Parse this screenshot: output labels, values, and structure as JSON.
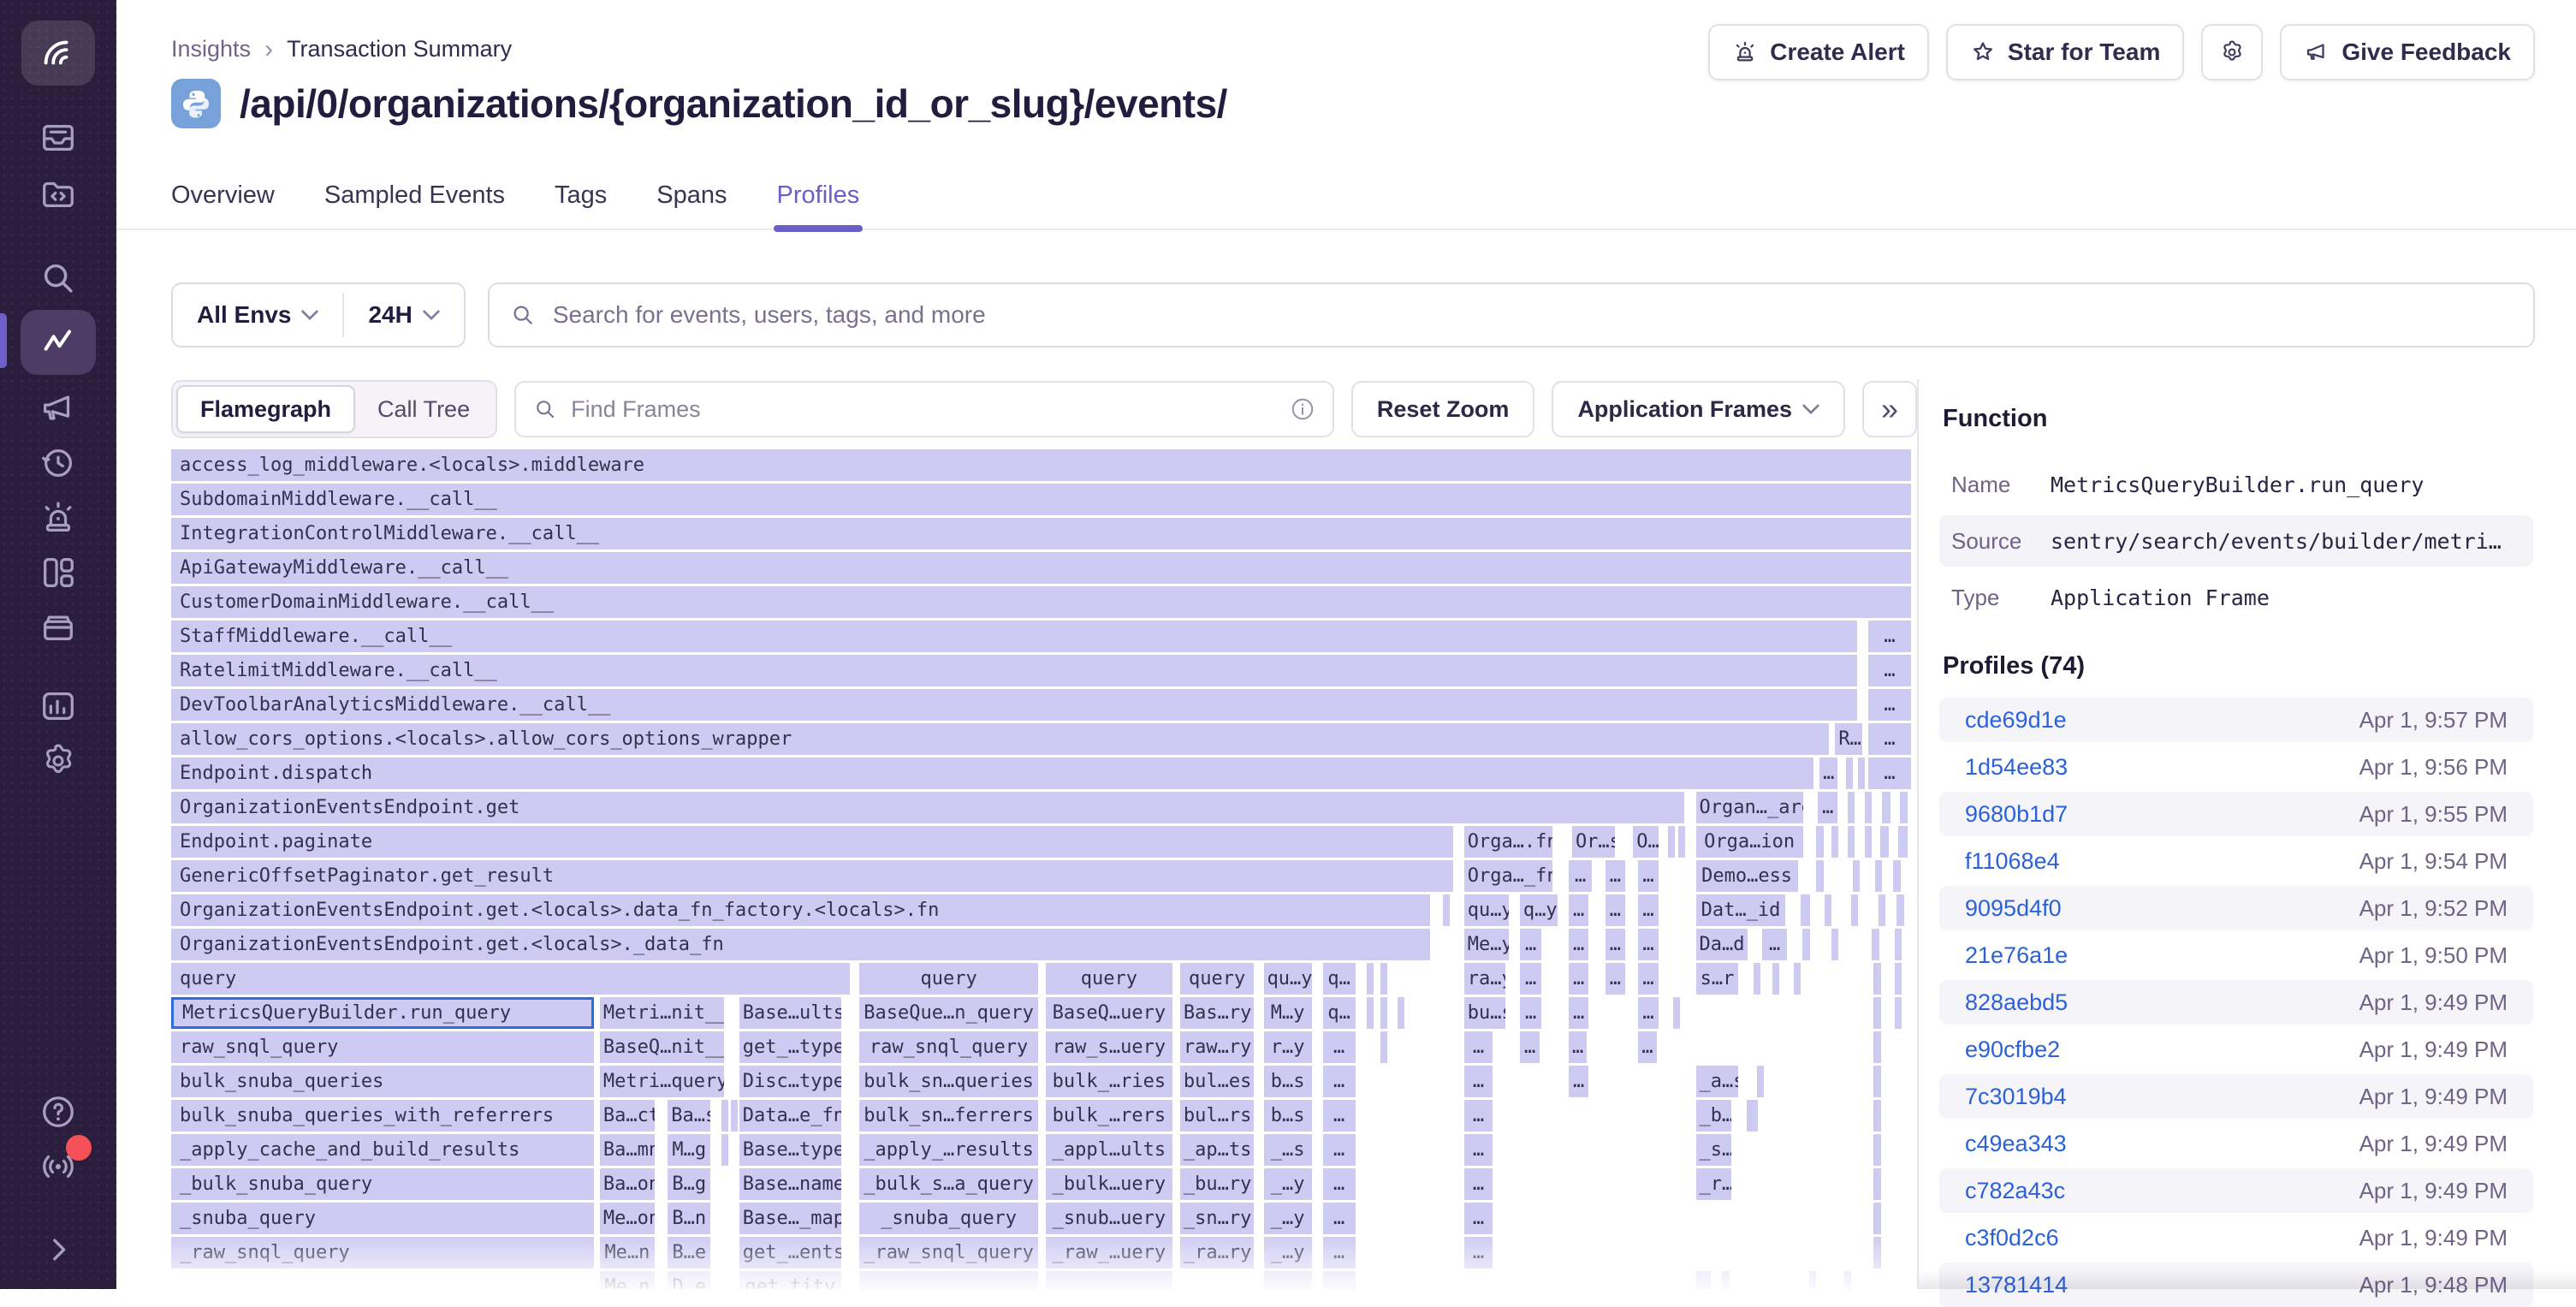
{
  "colors": {
    "accent_purple": "#6a5fc8",
    "sidebar_bg": "#2b1d3c",
    "flame_bar": "#cecbf3",
    "selection_blue": "#2d6be1",
    "link_blue": "#2b62d9",
    "red_badge": "#f65058"
  },
  "breadcrumb": {
    "items": [
      "Insights",
      "Transaction Summary"
    ],
    "separator": "›"
  },
  "header": {
    "title": "/api/0/organizations/{organization_id_or_slug}/events/",
    "platform_icon": "python-icon",
    "actions": [
      "Create Alert",
      "Star for Team",
      "Give Feedback"
    ]
  },
  "tabs": [
    {
      "label": "Overview",
      "active": false
    },
    {
      "label": "Sampled Events",
      "active": false
    },
    {
      "label": "Tags",
      "active": false
    },
    {
      "label": "Spans",
      "active": false
    },
    {
      "label": "Profiles",
      "active": true
    }
  ],
  "filters": {
    "env_label": "All Envs",
    "time_label": "24H",
    "search_placeholder": "Search for events, users, tags, and more"
  },
  "toolbar": {
    "view_flamegraph": "Flamegraph",
    "view_calltree": "Call Tree",
    "find_placeholder": "Find Frames",
    "reset_label": "Reset Zoom",
    "frames_filter_label": "Application Frames",
    "collapse_label": "»"
  },
  "flamegraph": {
    "row_pitch": 40,
    "rows": [
      [
        [
          0,
          100,
          "access_log_middleware.<locals>.middleware"
        ]
      ],
      [
        [
          0,
          100,
          "SubdomainMiddleware.__call__"
        ]
      ],
      [
        [
          0,
          100,
          "IntegrationControlMiddleware.__call__"
        ]
      ],
      [
        [
          0,
          100,
          "ApiGatewayMiddleware.__call__"
        ]
      ],
      [
        [
          0,
          100,
          "CustomerDomainMiddleware.__call__"
        ]
      ],
      [
        [
          0,
          96.9,
          "StaffMiddleware.__call__"
        ],
        [
          97.4,
          2.6,
          "…"
        ]
      ],
      [
        [
          0,
          96.9,
          "RatelimitMiddleware.__call__"
        ],
        [
          97.4,
          2.6,
          "…"
        ]
      ],
      [
        [
          0,
          96.9,
          "DevToolbarAnalyticsMiddleware.__call__"
        ],
        [
          97.4,
          2.6,
          "…"
        ]
      ],
      [
        [
          0,
          95.3,
          "allow_cors_options.<locals>.allow_cors_options_wrapper"
        ],
        [
          95.5,
          1.7,
          "R…"
        ],
        [
          97.4,
          2.6,
          "…"
        ]
      ],
      [
        [
          0,
          94.4,
          "Endpoint.dispatch"
        ],
        [
          94.6,
          1.2,
          "…"
        ],
        [
          96.1,
          0.4,
          ""
        ],
        [
          96.8,
          0.4,
          ""
        ],
        [
          97.4,
          2.6,
          "…"
        ]
      ],
      [
        [
          0,
          87.0,
          "OrganizationEventsEndpoint.get"
        ],
        [
          87.5,
          6.3,
          "Organ…_args"
        ],
        [
          94.5,
          1.3,
          "…"
        ],
        [
          96.2,
          0.5,
          ""
        ],
        [
          97.2,
          0.5,
          ""
        ],
        [
          98.2,
          0.6,
          ""
        ],
        [
          99.2,
          0.6,
          ""
        ]
      ],
      [
        [
          0,
          73.7,
          "Endpoint.paginate"
        ],
        [
          74.2,
          5.2,
          "Orga….fn"
        ],
        [
          80.4,
          2.6,
          "Or…s"
        ],
        [
          83.9,
          1.6,
          "O…"
        ],
        [
          85.9,
          0.3,
          ""
        ],
        [
          86.5,
          0.3,
          ""
        ],
        [
          87.5,
          6.3,
          "Orga…ion"
        ],
        [
          94.4,
          0.6,
          ""
        ],
        [
          95.3,
          0.4,
          ""
        ],
        [
          96.2,
          0.4,
          ""
        ],
        [
          97.2,
          0.5,
          ""
        ],
        [
          98.1,
          0.6,
          ""
        ],
        [
          99.1,
          0.7,
          ""
        ]
      ],
      [
        [
          0,
          73.7,
          "GenericOffsetPaginator.get_result"
        ],
        [
          74.2,
          5.2,
          "Orga…_fn"
        ],
        [
          80.2,
          1.5,
          "…"
        ],
        [
          82.3,
          1.3,
          "…"
        ],
        [
          84.2,
          1.3,
          "…"
        ],
        [
          87.5,
          6.0,
          "Demo…ess"
        ],
        [
          94.4,
          0.6,
          ""
        ],
        [
          96.5,
          0.5,
          ""
        ],
        [
          97.8,
          0.5,
          ""
        ],
        [
          98.8,
          0.6,
          ""
        ]
      ],
      [
        [
          0,
          72.4,
          "OrganizationEventsEndpoint.get.<locals>.data_fn_factory.<locals>.fn"
        ],
        [
          73.0,
          0.3,
          ""
        ],
        [
          74.2,
          2.7,
          "qu…y"
        ],
        [
          77.4,
          2.3,
          "q…y"
        ],
        [
          80.2,
          1.3,
          "…"
        ],
        [
          82.3,
          1.3,
          "…"
        ],
        [
          84.2,
          1.3,
          "…"
        ],
        [
          87.5,
          5.3,
          "Dat…_id"
        ],
        [
          93.5,
          0.7,
          ""
        ],
        [
          94.9,
          0.5,
          ""
        ],
        [
          96.4,
          0.4,
          ""
        ],
        [
          98.0,
          0.5,
          ""
        ],
        [
          99.0,
          0.6,
          ""
        ]
      ],
      [
        [
          0,
          72.4,
          "OrganizationEventsEndpoint.get.<locals>._data_fn"
        ],
        [
          74.2,
          2.7,
          "Me…y"
        ],
        [
          77.4,
          1.4,
          "…"
        ],
        [
          80.2,
          1.3,
          "…"
        ],
        [
          82.3,
          1.3,
          "…"
        ],
        [
          84.2,
          1.3,
          "…"
        ],
        [
          87.5,
          3.1,
          "Da…d"
        ],
        [
          91.3,
          1.6,
          "…"
        ],
        [
          93.6,
          0.6,
          ""
        ],
        [
          95.3,
          0.5,
          ""
        ],
        [
          97.6,
          0.6,
          ""
        ],
        [
          98.9,
          0.5,
          ""
        ]
      ],
      [
        [
          0,
          39.1,
          "query"
        ],
        [
          39.5,
          10.4,
          "query"
        ],
        [
          50.2,
          7.4,
          "query"
        ],
        [
          57.9,
          4.4,
          "query"
        ],
        [
          62.7,
          2.9,
          "qu…y"
        ],
        [
          66.1,
          2.0,
          "q…"
        ],
        [
          68.6,
          0.4,
          ""
        ],
        [
          69.4,
          0.4,
          ""
        ],
        [
          74.2,
          2.5,
          "ra…y"
        ],
        [
          77.4,
          1.4,
          "…"
        ],
        [
          80.2,
          1.3,
          "…"
        ],
        [
          82.3,
          1.3,
          "…"
        ],
        [
          84.2,
          1.3,
          "…"
        ],
        [
          87.5,
          2.6,
          "s…r"
        ],
        [
          90.8,
          0.5,
          ""
        ],
        [
          91.9,
          0.4,
          ""
        ],
        [
          93.1,
          0.5,
          ""
        ],
        [
          97.7,
          0.6,
          ""
        ],
        [
          98.9,
          0.5,
          ""
        ]
      ],
      [
        [
          0,
          24.4,
          "MetricsQueryBuilder.run_query",
          "sel"
        ],
        [
          24.6,
          7.3,
          "Metri…nit__"
        ],
        [
          32.6,
          6.0,
          "Base…ults"
        ],
        [
          39.5,
          10.4,
          "BaseQue…n_query"
        ],
        [
          50.2,
          7.4,
          "BaseQ…uery"
        ],
        [
          57.9,
          4.4,
          "Bas…ry"
        ],
        [
          62.7,
          2.9,
          "M…y"
        ],
        [
          66.1,
          2.0,
          "q…"
        ],
        [
          68.6,
          0.4,
          ""
        ],
        [
          69.4,
          0.4,
          ""
        ],
        [
          70.4,
          0.3,
          ""
        ],
        [
          74.2,
          2.5,
          "bu…s"
        ],
        [
          77.4,
          1.4,
          "…"
        ],
        [
          80.2,
          1.3,
          "…"
        ],
        [
          84.2,
          1.3,
          "…"
        ],
        [
          86.2,
          0.4,
          ""
        ],
        [
          97.7,
          0.6,
          ""
        ],
        [
          98.9,
          0.5,
          ""
        ]
      ],
      [
        [
          0,
          24.4,
          "raw_snql_query"
        ],
        [
          24.6,
          7.3,
          "BaseQ…nit__"
        ],
        [
          32.6,
          6.0,
          "get_…type"
        ],
        [
          39.5,
          10.4,
          "raw_snql_query"
        ],
        [
          50.2,
          7.4,
          "raw_s…uery"
        ],
        [
          57.9,
          4.4,
          "raw…ry"
        ],
        [
          62.7,
          2.9,
          "r…y"
        ],
        [
          66.1,
          2.0,
          "…"
        ],
        [
          69.4,
          0.4,
          ""
        ],
        [
          74.2,
          1.8,
          "…"
        ],
        [
          77.4,
          1.3,
          "…"
        ],
        [
          80.2,
          1.2,
          "…"
        ],
        [
          84.2,
          1.2,
          "…"
        ],
        [
          97.7,
          0.6,
          ""
        ]
      ],
      [
        [
          0,
          24.4,
          "bulk_snuba_queries"
        ],
        [
          24.6,
          7.3,
          "Metri…query"
        ],
        [
          32.6,
          6.0,
          "Disc…type"
        ],
        [
          39.5,
          10.4,
          "bulk_sn…queries"
        ],
        [
          50.2,
          7.4,
          "bulk_…ries"
        ],
        [
          57.9,
          4.4,
          "bul…es"
        ],
        [
          62.7,
          2.9,
          "b…s"
        ],
        [
          66.1,
          2.0,
          "…"
        ],
        [
          74.2,
          1.8,
          "…"
        ],
        [
          80.2,
          1.3,
          "…"
        ],
        [
          87.5,
          2.6,
          "_a…s"
        ],
        [
          91.0,
          0.5,
          ""
        ],
        [
          97.7,
          0.6,
          ""
        ]
      ],
      [
        [
          0,
          24.4,
          "bulk_snuba_queries_with_referrers"
        ],
        [
          24.6,
          3.3,
          "Ba…ct"
        ],
        [
          28.5,
          2.6,
          "Ba…s"
        ],
        [
          31.6,
          0.3,
          ""
        ],
        [
          32.1,
          0.3,
          ""
        ],
        [
          32.6,
          6.0,
          "Data…e_fn"
        ],
        [
          39.5,
          10.4,
          "bulk_sn…ferrers"
        ],
        [
          50.2,
          7.4,
          "bulk_…rers"
        ],
        [
          57.9,
          4.4,
          "bul…rs"
        ],
        [
          62.7,
          2.9,
          "b…s"
        ],
        [
          66.1,
          2.0,
          "…"
        ],
        [
          74.2,
          1.8,
          "…"
        ],
        [
          87.5,
          2.2,
          "_b…y"
        ],
        [
          90.4,
          0.8,
          ""
        ],
        [
          97.7,
          0.6,
          ""
        ]
      ],
      [
        [
          0,
          24.4,
          "_apply_cache_and_build_results"
        ],
        [
          24.6,
          3.3,
          "Ba…mn"
        ],
        [
          28.5,
          2.6,
          "M…g"
        ],
        [
          31.6,
          0.3,
          ""
        ],
        [
          32.6,
          6.0,
          "Base…type"
        ],
        [
          39.5,
          10.4,
          "_apply_…results"
        ],
        [
          50.2,
          7.4,
          "_appl…ults"
        ],
        [
          57.9,
          4.4,
          "_ap…ts"
        ],
        [
          62.7,
          2.9,
          "_…s"
        ],
        [
          66.1,
          2.0,
          "…"
        ],
        [
          74.2,
          1.8,
          "…"
        ],
        [
          87.5,
          2.2,
          "_s…y"
        ],
        [
          97.7,
          0.6,
          ""
        ]
      ],
      [
        [
          0,
          24.4,
          "_bulk_snuba_query"
        ],
        [
          24.6,
          3.3,
          "Ba…on"
        ],
        [
          28.5,
          2.6,
          "B…g"
        ],
        [
          32.6,
          6.0,
          "Base…name"
        ],
        [
          39.5,
          10.4,
          "_bulk_s…a_query"
        ],
        [
          50.2,
          7.4,
          "_bulk…uery"
        ],
        [
          57.9,
          4.4,
          "_bu…ry"
        ],
        [
          62.7,
          2.9,
          "_…y"
        ],
        [
          66.1,
          2.0,
          "…"
        ],
        [
          74.2,
          1.8,
          "…"
        ],
        [
          87.5,
          2.2,
          "_r…y"
        ],
        [
          97.7,
          0.6,
          ""
        ]
      ],
      [
        [
          0,
          24.4,
          "_snuba_query"
        ],
        [
          24.6,
          3.3,
          "Me…on"
        ],
        [
          28.5,
          2.6,
          "B…n"
        ],
        [
          32.6,
          6.0,
          "Base…_map"
        ],
        [
          39.5,
          10.4,
          "_snuba_query"
        ],
        [
          50.2,
          7.4,
          "_snub…uery"
        ],
        [
          57.9,
          4.4,
          "_sn…ry"
        ],
        [
          62.7,
          2.9,
          "_…y"
        ],
        [
          66.1,
          2.0,
          "…"
        ],
        [
          74.2,
          1.8,
          "…"
        ],
        [
          97.7,
          0.6,
          ""
        ]
      ],
      [
        [
          0,
          24.4,
          "_raw_snql_query"
        ],
        [
          24.6,
          3.3,
          "Me…n"
        ],
        [
          28.5,
          2.6,
          "B…e"
        ],
        [
          32.6,
          6.0,
          "get_…ents"
        ],
        [
          39.5,
          10.4,
          "_raw_snql_query"
        ],
        [
          50.2,
          7.4,
          "_raw_…uery"
        ],
        [
          57.9,
          4.4,
          "_ra…ry"
        ],
        [
          62.7,
          2.9,
          "_…y"
        ],
        [
          66.1,
          2.0,
          "…"
        ],
        [
          74.2,
          1.8,
          "…"
        ],
        [
          97.7,
          0.6,
          ""
        ]
      ],
      [
        [
          24.6,
          3.3,
          "Me…n",
          "dim"
        ],
        [
          28.5,
          2.6,
          "D…e",
          "dim"
        ],
        [
          32.6,
          6.0,
          "get…tity",
          "dim"
        ],
        [
          39.5,
          10.4,
          "",
          "dim"
        ],
        [
          50.2,
          7.4,
          "",
          "dim"
        ],
        [
          62.7,
          2.9,
          "",
          "dim"
        ],
        [
          66.1,
          2.0,
          "…",
          "dim"
        ],
        [
          87.5,
          1.0,
          "",
          "dim"
        ],
        [
          89.0,
          0.6,
          "",
          "dim"
        ],
        [
          94.0,
          0.5,
          "",
          "dim"
        ],
        [
          96.0,
          0.5,
          "",
          "dim"
        ]
      ]
    ]
  },
  "panel": {
    "title": "Function",
    "fields": [
      {
        "label": "Name",
        "value": "MetricsQueryBuilder.run_query"
      },
      {
        "label": "Source",
        "value": "sentry/search/events/builder/metri…"
      },
      {
        "label": "Type",
        "value": "Application Frame"
      }
    ],
    "profiles_title": "Profiles (74)",
    "profiles": [
      {
        "id": "cde69d1e",
        "time": "Apr 1, 9:57 PM"
      },
      {
        "id": "1d54ee83",
        "time": "Apr 1, 9:56 PM"
      },
      {
        "id": "9680b1d7",
        "time": "Apr 1, 9:55 PM"
      },
      {
        "id": "f11068e4",
        "time": "Apr 1, 9:54 PM"
      },
      {
        "id": "9095d4f0",
        "time": "Apr 1, 9:52 PM"
      },
      {
        "id": "21e76a1e",
        "time": "Apr 1, 9:50 PM"
      },
      {
        "id": "828aebd5",
        "time": "Apr 1, 9:49 PM"
      },
      {
        "id": "e90cfbe2",
        "time": "Apr 1, 9:49 PM"
      },
      {
        "id": "7c3019b4",
        "time": "Apr 1, 9:49 PM"
      },
      {
        "id": "c49ea343",
        "time": "Apr 1, 9:49 PM"
      },
      {
        "id": "c782a43c",
        "time": "Apr 1, 9:49 PM"
      },
      {
        "id": "c3f0d2c6",
        "time": "Apr 1, 9:49 PM"
      },
      {
        "id": "13781414",
        "time": "Apr 1, 9:48 PM"
      }
    ]
  }
}
